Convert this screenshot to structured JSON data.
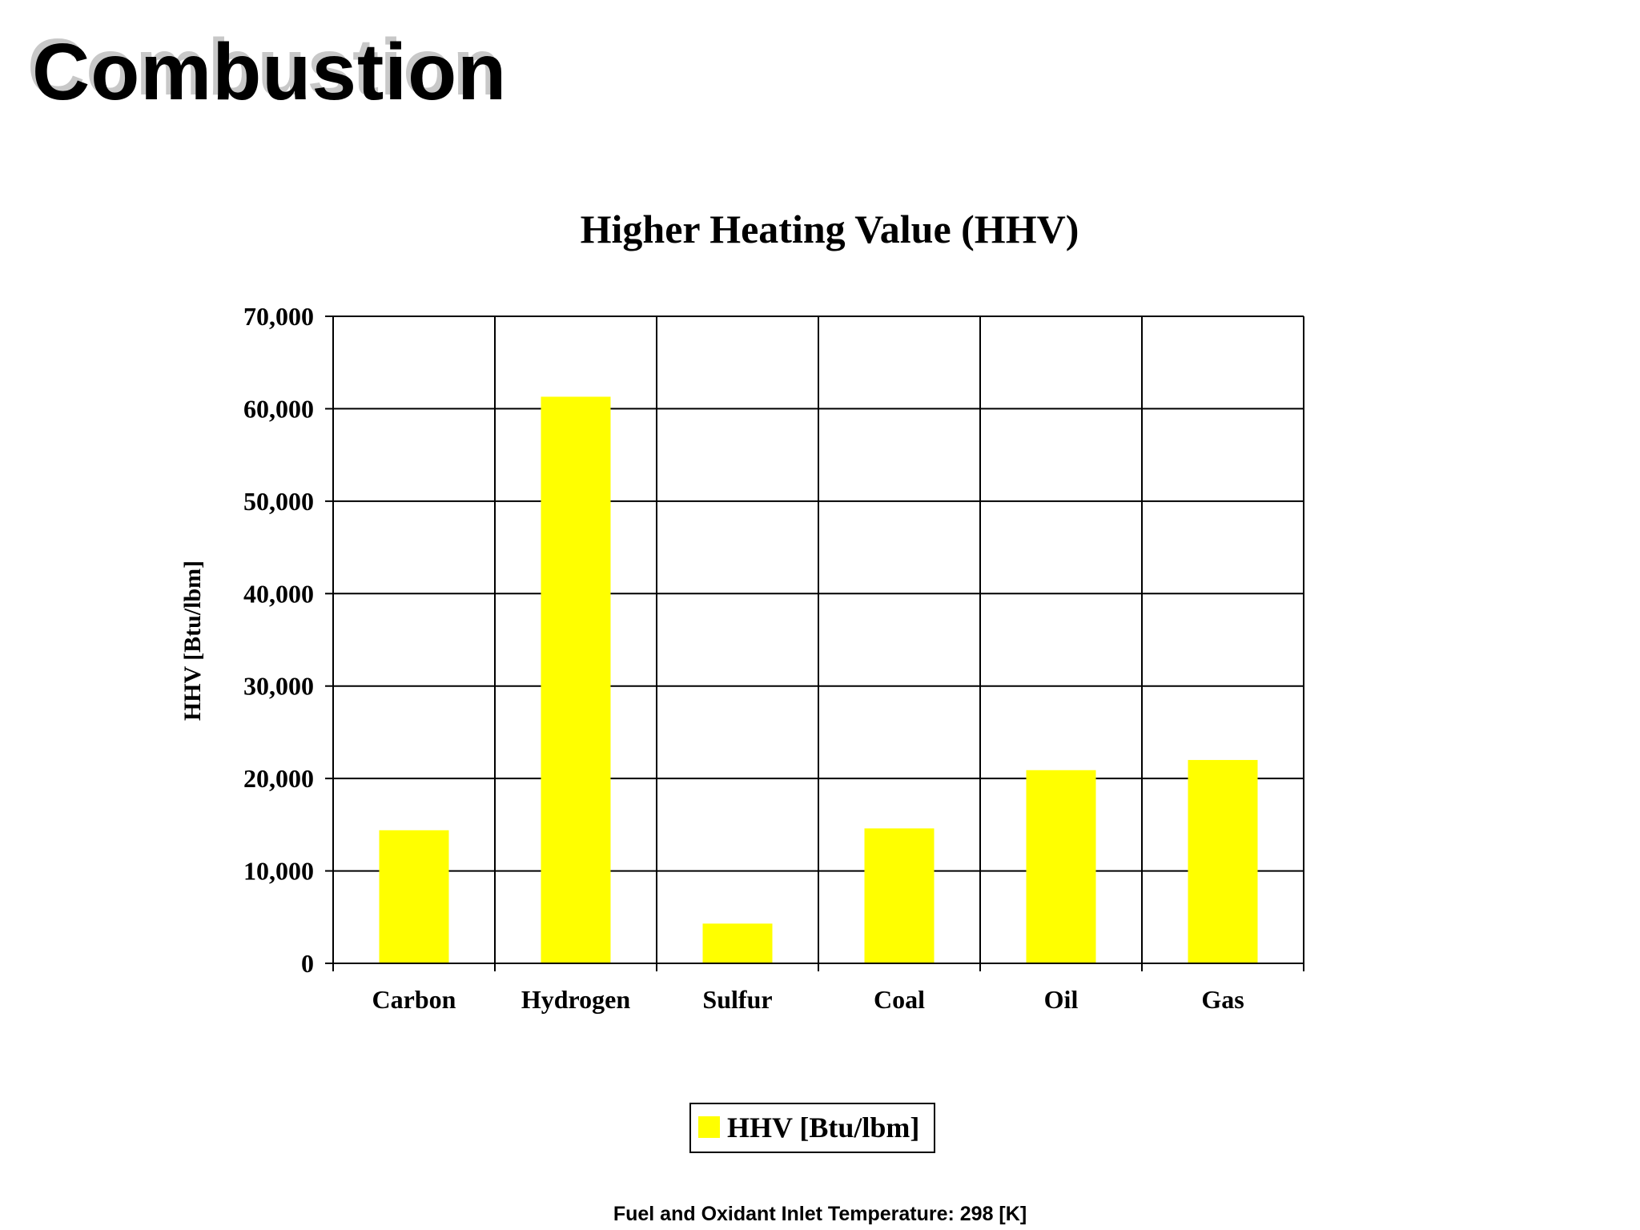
{
  "slide": {
    "title": "Combustion",
    "footnote": "Fuel and Oxidant Inlet Temperature:  298 [K]"
  },
  "colors": {
    "bar": "#ffff00",
    "grid": "#000000",
    "title_shadow": "#c8c8c8"
  },
  "chart_data": {
    "type": "bar",
    "title": "Higher Heating Value (HHV)",
    "xlabel": "",
    "ylabel": "HHV [Btu/lbm]",
    "categories": [
      "Carbon",
      "Hydrogen",
      "Sulfur",
      "Coal",
      "Oil",
      "Gas"
    ],
    "series": [
      {
        "name": "HHV [Btu/lbm]",
        "values": [
          14400,
          61300,
          4300,
          14600,
          20900,
          22000
        ]
      }
    ],
    "ylim": [
      0,
      70000
    ],
    "yticks": [
      0,
      10000,
      20000,
      30000,
      40000,
      50000,
      60000,
      70000
    ],
    "ytick_labels": [
      "0",
      "10,000",
      "20,000",
      "30,000",
      "40,000",
      "50,000",
      "60,000",
      "70,000"
    ],
    "grid": true,
    "legend": "bottom-center"
  }
}
